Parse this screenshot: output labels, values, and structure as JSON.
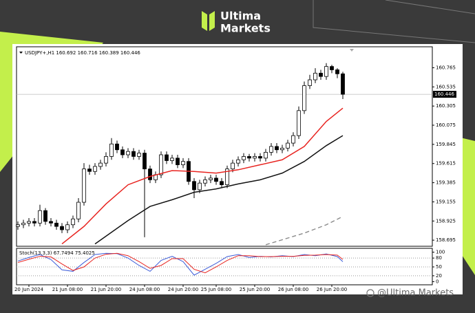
{
  "brand": [
    "Ultima",
    "Markets"
  ],
  "watermark": "@Ultima Markets",
  "chart_data": {
    "type": "candlestick",
    "header": "USDJPY+,H1 160.692 160.716 160.389 160.446",
    "categories": [
      null,
      null,
      "20 Jun 2024",
      null,
      null,
      null,
      null,
      null,
      null,
      "21 Jun 08:00",
      null,
      null,
      null,
      null,
      null,
      null,
      "21 Jun 20:00",
      null,
      null,
      null,
      null,
      null,
      null,
      "24 Jun 08:00",
      null,
      null,
      null,
      null,
      null,
      null,
      "24 Jun 20:00",
      null,
      null,
      null,
      null,
      null,
      "25 Jun 08:00",
      null,
      null,
      null,
      null,
      null,
      null,
      "25 Jun 20:00",
      null,
      null,
      null,
      null,
      null,
      null,
      "26 Jun 08:00",
      null,
      null,
      null,
      null,
      null,
      null,
      "26 Jun 20:00",
      null,
      null
    ],
    "open": [
      158.86,
      158.88,
      158.9,
      158.92,
      158.9,
      159.05,
      158.92,
      158.9,
      158.86,
      158.82,
      158.88,
      158.95,
      159.15,
      159.55,
      159.52,
      159.58,
      159.62,
      159.7,
      159.85,
      159.78,
      159.72,
      159.76,
      159.7,
      159.74,
      159.55,
      159.42,
      159.48,
      159.72,
      159.65,
      159.68,
      159.6,
      159.64,
      159.4,
      159.3,
      159.38,
      159.42,
      159.44,
      159.4,
      159.36,
      159.55,
      159.62,
      159.66,
      159.7,
      159.68,
      159.7,
      159.68,
      159.75,
      159.82,
      159.78,
      159.8,
      159.86,
      159.95,
      160.25,
      160.55,
      160.62,
      160.7,
      160.66,
      160.78,
      160.74,
      160.692
    ],
    "high": [
      158.92,
      158.94,
      158.96,
      158.96,
      159.12,
      159.08,
      158.96,
      158.94,
      158.9,
      158.92,
      158.99,
      159.2,
      159.62,
      159.6,
      159.62,
      159.66,
      159.75,
      159.92,
      159.89,
      159.82,
      159.8,
      159.8,
      159.78,
      159.78,
      159.59,
      159.52,
      159.76,
      159.76,
      159.72,
      159.72,
      159.68,
      159.68,
      159.44,
      159.42,
      159.46,
      159.48,
      159.48,
      159.44,
      159.59,
      159.66,
      159.7,
      159.74,
      159.73,
      159.74,
      159.74,
      159.79,
      159.86,
      159.86,
      159.84,
      159.9,
      159.99,
      160.3,
      160.6,
      160.68,
      160.76,
      160.74,
      160.82,
      160.8,
      160.76,
      160.716
    ],
    "low": [
      158.82,
      158.84,
      158.86,
      158.86,
      158.86,
      158.88,
      158.86,
      158.82,
      158.78,
      158.78,
      158.84,
      158.91,
      159.11,
      159.48,
      159.48,
      159.54,
      159.58,
      159.66,
      159.74,
      159.68,
      159.68,
      159.66,
      159.66,
      158.73,
      159.38,
      159.38,
      159.44,
      159.61,
      159.61,
      159.56,
      159.56,
      159.36,
      159.2,
      159.26,
      159.34,
      159.38,
      159.36,
      159.32,
      159.32,
      159.51,
      159.58,
      159.62,
      159.64,
      159.64,
      159.64,
      159.64,
      159.71,
      159.74,
      159.74,
      159.76,
      159.82,
      159.91,
      160.21,
      160.51,
      160.58,
      160.62,
      160.62,
      160.7,
      160.64,
      160.389
    ],
    "close": [
      158.88,
      158.9,
      158.92,
      158.9,
      159.05,
      158.92,
      158.9,
      158.86,
      158.82,
      158.88,
      158.95,
      159.15,
      159.55,
      159.52,
      159.58,
      159.62,
      159.7,
      159.85,
      159.78,
      159.72,
      159.76,
      159.7,
      159.74,
      159.55,
      159.42,
      159.48,
      159.72,
      159.65,
      159.68,
      159.6,
      159.64,
      159.4,
      159.3,
      159.38,
      159.42,
      159.44,
      159.4,
      159.36,
      159.55,
      159.62,
      159.66,
      159.7,
      159.68,
      159.7,
      159.68,
      159.75,
      159.82,
      159.78,
      159.8,
      159.86,
      159.95,
      160.25,
      160.55,
      160.62,
      160.7,
      160.66,
      160.78,
      160.74,
      160.692,
      160.446
    ],
    "up_color": "#ffffff",
    "down_color": "#000000",
    "ylim": [
      158.63,
      161.0
    ],
    "yticks": [
      160.765,
      160.535,
      160.305,
      160.075,
      159.845,
      159.615,
      159.385,
      159.155,
      158.925,
      158.695
    ],
    "lines": [
      {
        "color": "#e8231f",
        "dashed": false,
        "x": [
          8,
          12,
          16,
          20,
          24,
          28,
          32,
          36,
          40,
          44,
          48,
          52,
          56,
          59
        ],
        "values": [
          158.65,
          158.86,
          159.13,
          159.36,
          159.46,
          159.53,
          159.52,
          159.5,
          159.54,
          159.6,
          159.66,
          159.82,
          160.12,
          160.28
        ]
      },
      {
        "color": "#111111",
        "dashed": false,
        "x": [
          14,
          20,
          24,
          28,
          32,
          36,
          40,
          44,
          48,
          52,
          56,
          59
        ],
        "values": [
          158.65,
          158.93,
          159.1,
          159.18,
          159.27,
          159.31,
          159.37,
          159.42,
          159.5,
          159.64,
          159.83,
          159.95
        ]
      },
      {
        "color": "#8a8a8a",
        "dashed": true,
        "x": [
          45,
          48,
          52,
          56,
          59
        ],
        "values": [
          158.64,
          158.7,
          158.78,
          158.88,
          158.98
        ]
      }
    ],
    "indicator": {
      "label": "Stoch(13,3,3) 67.7494 75.4025",
      "ylim": [
        -6,
        106
      ],
      "yticks": [
        100,
        80,
        50,
        20,
        0
      ],
      "levels": [
        80,
        50,
        20
      ],
      "series": [
        {
          "color": "#3a5bd9",
          "x": [
            0,
            2,
            4,
            6,
            8,
            10,
            12,
            14,
            16,
            18,
            20,
            22,
            24,
            26,
            28,
            30,
            32,
            34,
            36,
            38,
            40,
            42,
            44,
            46,
            48,
            50,
            52,
            54,
            56,
            58,
            59
          ],
          "values": [
            70,
            82,
            92,
            75,
            40,
            35,
            65,
            92,
            96,
            95,
            80,
            55,
            35,
            72,
            86,
            68,
            22,
            42,
            62,
            85,
            92,
            82,
            86,
            84,
            88,
            85,
            92,
            88,
            94,
            85,
            67.7494
          ]
        },
        {
          "color": "#e8231f",
          "x": [
            0,
            2,
            4,
            6,
            8,
            10,
            12,
            14,
            16,
            18,
            20,
            22,
            24,
            26,
            28,
            30,
            32,
            34,
            36,
            38,
            40,
            42,
            44,
            46,
            48,
            50,
            52,
            54,
            56,
            58,
            59
          ],
          "values": [
            65,
            76,
            86,
            84,
            60,
            38,
            50,
            80,
            93,
            96,
            88,
            68,
            45,
            55,
            78,
            78,
            42,
            30,
            50,
            72,
            88,
            88,
            85,
            85,
            86,
            86,
            89,
            90,
            92,
            90,
            75.4025
          ]
        }
      ]
    }
  }
}
